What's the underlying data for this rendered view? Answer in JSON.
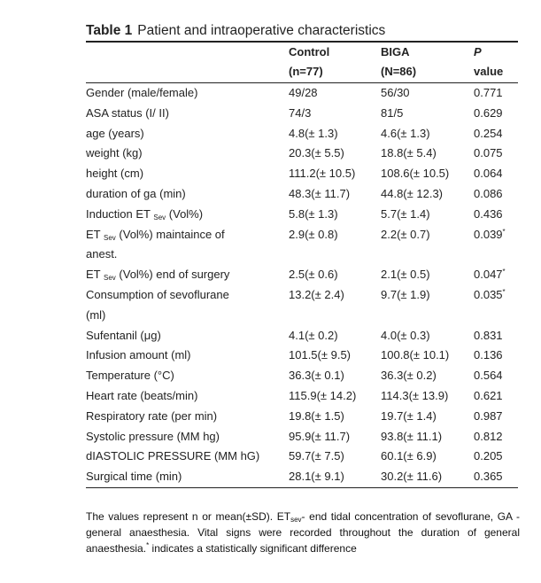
{
  "table": {
    "label": "Table 1",
    "title": "Patient and intraoperative characteristics",
    "header": [
      [
        "",
        ""
      ],
      [
        "Control",
        "(n=77)"
      ],
      [
        "BIGA",
        "(N=86)"
      ],
      [
        "P",
        "value"
      ]
    ],
    "rows": [
      {
        "label": [
          "Gender (male/female)"
        ],
        "control": "49/28",
        "biga": "56/30",
        "p": "0.771"
      },
      {
        "label": [
          "ASA status (I/ II)"
        ],
        "control": "74/3",
        "biga": "81/5",
        "p": "0.629"
      },
      {
        "label": [
          "age (years)"
        ],
        "control": "4.8(± 1.3)",
        "biga": "4.6(± 1.3)",
        "p": "0.254"
      },
      {
        "label": [
          "weight (kg)"
        ],
        "control": "20.3(± 5.5)",
        "biga": "18.8(± 5.4)",
        "p": "0.075"
      },
      {
        "label": [
          "height (cm)"
        ],
        "control": "111.2(± 10.5)",
        "biga": "108.6(± 10.5)",
        "p": "0.064"
      },
      {
        "label": [
          "duration of ga (min)"
        ],
        "control": "48.3(± 11.7)",
        "biga": "44.8(± 12.3)",
        "p": "0.086"
      },
      {
        "label": [
          [
            "Induction ET ",
            {
              "sub": "Sev"
            },
            " (Vol%)"
          ]
        ],
        "control": "5.8(± 1.3)",
        "biga": "5.7(± 1.4)",
        "p": "0.436"
      },
      {
        "label": [
          [
            "ET ",
            {
              "sub": "Sev"
            },
            " (Vol%) maintaince of"
          ],
          "anest."
        ],
        "control": "2.9(± 0.8)",
        "biga": "2.2(± 0.7)",
        "p": "0.039",
        "p_mark": "*"
      },
      {
        "label": [
          [
            "ET ",
            {
              "sub": "Sev"
            },
            " (Vol%) end of surgery"
          ]
        ],
        "control": "2.5(± 0.6)",
        "biga": "2.1(± 0.5)",
        "p": "0.047",
        "p_mark": "*"
      },
      {
        "label": [
          "Consumption of sevoflurane",
          "(ml)"
        ],
        "control": "13.2(± 2.4)",
        "biga": "9.7(± 1.9)",
        "p": "0.035",
        "p_mark": "*"
      },
      {
        "label": [
          "Sufentanil (μg)"
        ],
        "control": "4.1(± 0.2)",
        "biga": "4.0(± 0.3)",
        "p": "0.831"
      },
      {
        "label": [
          "Infusion amount (ml)"
        ],
        "control": "101.5(± 9.5)",
        "biga": "100.8(± 10.1)",
        "p": "0.136"
      },
      {
        "label": [
          "Temperature (°C)"
        ],
        "control": "36.3(± 0.1)",
        "biga": "36.3(± 0.2)",
        "p": "0.564"
      },
      {
        "label": [
          "Heart rate (beats/min)"
        ],
        "control": "115.9(± 14.2)",
        "biga": "114.3(± 13.9)",
        "p": "0.621"
      },
      {
        "label": [
          "Respiratory rate (per min)"
        ],
        "control": "19.8(± 1.5)",
        "biga": "19.7(± 1.4)",
        "p": "0.987"
      },
      {
        "label": [
          "Systolic pressure (MM hg)"
        ],
        "control": "95.9(± 11.7)",
        "biga": "93.8(± 11.1)",
        "p": "0.812"
      },
      {
        "label": [
          "dIASTOLIC PRESSURE (MM hG)"
        ],
        "control": "59.7(± 7.5)",
        "biga": "60.1(± 6.9)",
        "p": "0.205"
      },
      {
        "label": [
          "Surgical time (min)"
        ],
        "control": "28.1(± 9.1)",
        "biga": "30.2(± 11.6)",
        "p": "0.365"
      }
    ],
    "footnote": [
      "The values represent n or mean(±SD). ET",
      {
        "sub": "sev"
      },
      "- end tidal concentration of sevoflurane, GA -general anaesthesia. Vital signs were recorded throughout the duration of general anaesthesia.",
      {
        "sup": "*"
      },
      " indicates a statistically significant difference"
    ]
  }
}
